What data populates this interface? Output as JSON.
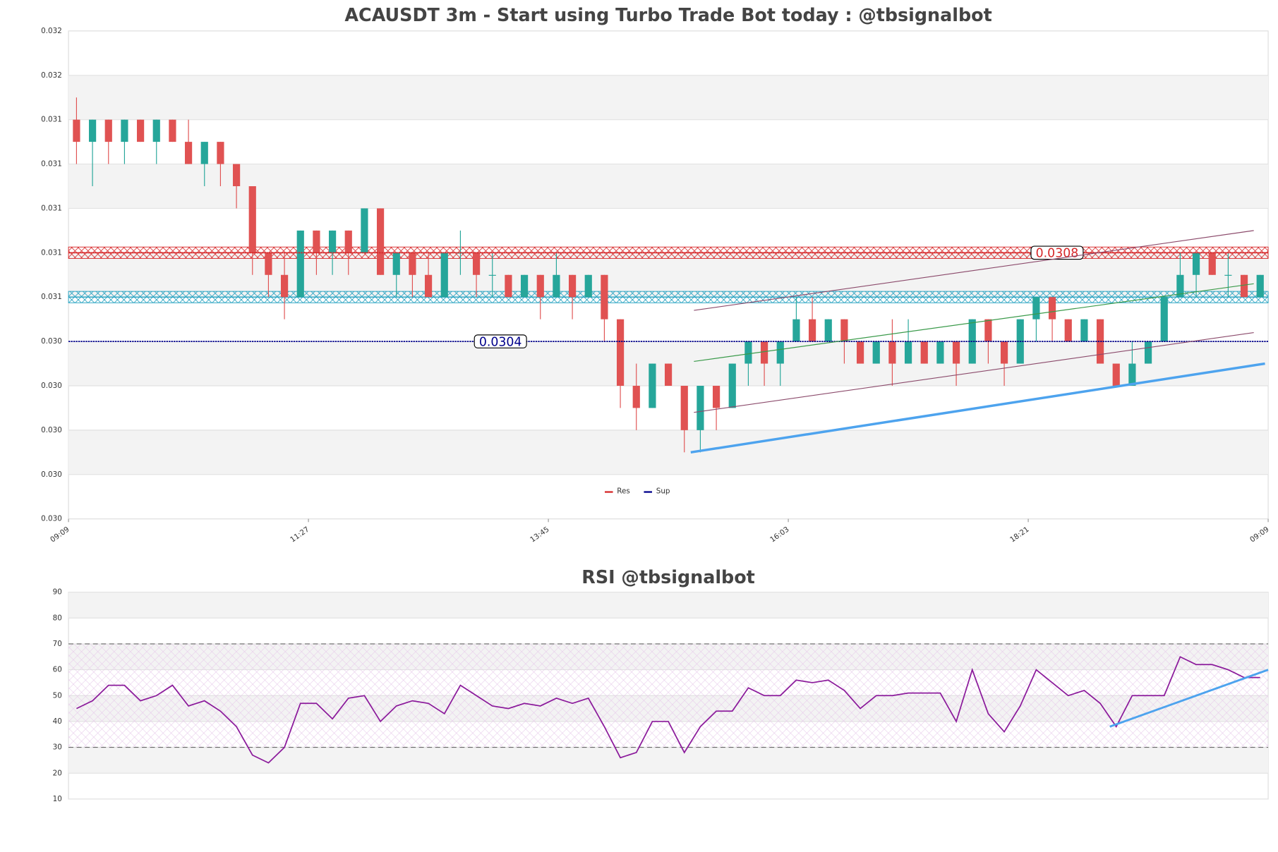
{
  "chart_data": [
    {
      "type": "candlestick",
      "title": "ACAUSDT 3m - Start using Turbo Trade Bot today : @tbsignalbot",
      "x": [
        0,
        1,
        2,
        3,
        4,
        5,
        6,
        7,
        8,
        9,
        10,
        11,
        12,
        13,
        14,
        15,
        16,
        17,
        18,
        19,
        20,
        21,
        22,
        23,
        24,
        25,
        26,
        27,
        28,
        29,
        30,
        31,
        32,
        33,
        34,
        35,
        36,
        37,
        38,
        39,
        40,
        41,
        42,
        43,
        44,
        45,
        46,
        47,
        48,
        49,
        50,
        51,
        52,
        53,
        54,
        55,
        56,
        57,
        58,
        59,
        60,
        61,
        62,
        63,
        64,
        65,
        66,
        67,
        68,
        69,
        70,
        71,
        72,
        73,
        74
      ],
      "open": [
        0.0314,
        0.0313,
        0.0314,
        0.0313,
        0.0314,
        0.0313,
        0.0314,
        0.0313,
        0.0312,
        0.0313,
        0.0312,
        0.0311,
        0.0308,
        0.0307,
        0.0306,
        0.0309,
        0.0308,
        0.0309,
        0.0308,
        0.031,
        0.0307,
        0.0308,
        0.0307,
        0.0306,
        0.0308,
        0.0308,
        0.0307,
        0.0307,
        0.0306,
        0.0307,
        0.0306,
        0.0307,
        0.0306,
        0.0307,
        0.0305,
        0.0302,
        0.0301,
        0.0303,
        0.0302,
        0.03,
        0.0302,
        0.0301,
        0.0303,
        0.0304,
        0.0303,
        0.0304,
        0.0305,
        0.0304,
        0.0305,
        0.0304,
        0.0303,
        0.0304,
        0.0303,
        0.0304,
        0.0303,
        0.0304,
        0.0303,
        0.0305,
        0.0304,
        0.0303,
        0.0305,
        0.0306,
        0.0305,
        0.0304,
        0.0305,
        0.0303,
        0.0302,
        0.0303,
        0.0304,
        0.0306,
        0.0307,
        0.0308,
        0.0307,
        0.0307,
        0.0306
      ],
      "high": [
        0.0315,
        0.0314,
        0.0314,
        0.0314,
        0.0314,
        0.0314,
        0.0314,
        0.0314,
        0.0313,
        0.0313,
        0.0312,
        0.0311,
        0.0308,
        0.0308,
        0.0309,
        0.0309,
        0.0309,
        0.0309,
        0.031,
        0.031,
        0.0308,
        0.0308,
        0.0308,
        0.0308,
        0.0309,
        0.0308,
        0.0308,
        0.0307,
        0.0307,
        0.0307,
        0.0308,
        0.0307,
        0.0307,
        0.0307,
        0.0305,
        0.0303,
        0.0303,
        0.0303,
        0.0302,
        0.0302,
        0.0302,
        0.0303,
        0.0304,
        0.0304,
        0.0304,
        0.0306,
        0.0306,
        0.0305,
        0.0305,
        0.0304,
        0.0304,
        0.0305,
        0.0305,
        0.0304,
        0.0304,
        0.0304,
        0.0305,
        0.0305,
        0.0304,
        0.0305,
        0.0306,
        0.0306,
        0.0305,
        0.0305,
        0.0305,
        0.0303,
        0.0304,
        0.0304,
        0.0306,
        0.0308,
        0.0308,
        0.0308,
        0.0308,
        0.0307,
        0.0307
      ],
      "low": [
        0.0312,
        0.0311,
        0.0312,
        0.0312,
        0.0313,
        0.0312,
        0.0313,
        0.0312,
        0.0311,
        0.0311,
        0.031,
        0.0307,
        0.0306,
        0.0305,
        0.0306,
        0.0307,
        0.0307,
        0.0307,
        0.0308,
        0.0307,
        0.0306,
        0.0306,
        0.0306,
        0.0306,
        0.0307,
        0.0306,
        0.0306,
        0.0306,
        0.0306,
        0.0305,
        0.0306,
        0.0305,
        0.0306,
        0.0304,
        0.0301,
        0.03,
        0.0301,
        0.0302,
        0.0299,
        0.0299,
        0.03,
        0.0301,
        0.0302,
        0.0302,
        0.0302,
        0.0304,
        0.0304,
        0.0304,
        0.0303,
        0.0303,
        0.0303,
        0.0302,
        0.0303,
        0.0303,
        0.0303,
        0.0302,
        0.0303,
        0.0303,
        0.0302,
        0.0303,
        0.0304,
        0.0304,
        0.0304,
        0.0304,
        0.0303,
        0.0302,
        0.0302,
        0.0303,
        0.0304,
        0.0306,
        0.0306,
        0.0307,
        0.0306,
        0.0306,
        0.0306
      ],
      "close": [
        0.0313,
        0.0314,
        0.0313,
        0.0314,
        0.0313,
        0.0314,
        0.0313,
        0.0312,
        0.0313,
        0.0312,
        0.0311,
        0.0308,
        0.0307,
        0.0306,
        0.0309,
        0.0308,
        0.0309,
        0.0308,
        0.031,
        0.0307,
        0.0308,
        0.0307,
        0.0306,
        0.0308,
        0.0308,
        0.0307,
        0.0307,
        0.0306,
        0.0307,
        0.0306,
        0.0307,
        0.0306,
        0.0307,
        0.0305,
        0.0302,
        0.0301,
        0.0303,
        0.0302,
        0.03,
        0.0302,
        0.0301,
        0.0303,
        0.0304,
        0.0303,
        0.0304,
        0.0305,
        0.0304,
        0.0305,
        0.0304,
        0.0303,
        0.0304,
        0.0303,
        0.0304,
        0.0303,
        0.0304,
        0.0303,
        0.0305,
        0.0304,
        0.0303,
        0.0305,
        0.0306,
        0.0305,
        0.0304,
        0.0305,
        0.0303,
        0.0302,
        0.0303,
        0.0304,
        0.0306,
        0.0307,
        0.0308,
        0.0307,
        0.0307,
        0.0306,
        0.0307
      ],
      "up_color": "#26a69a",
      "down_color": "#e05252",
      "xlim": [
        -0.5,
        74.5
      ],
      "xticks": [
        {
          "value": -0.5,
          "label": "09:09"
        },
        {
          "value": 14.5,
          "label": "11:27"
        },
        {
          "value": 29.5,
          "label": "13:45"
        },
        {
          "value": 44.5,
          "label": "16:03"
        },
        {
          "value": 59.5,
          "label": "18:21"
        },
        {
          "value": 74.5,
          "label": "09:09"
        }
      ],
      "ylim": [
        0.0296,
        0.0318
      ],
      "yticks": [
        {
          "value": 0.0296,
          "label": "0.030"
        },
        {
          "value": 0.0298,
          "label": "0.030"
        },
        {
          "value": 0.03,
          "label": "0.030"
        },
        {
          "value": 0.0302,
          "label": "0.030"
        },
        {
          "value": 0.0304,
          "label": "0.030"
        },
        {
          "value": 0.0306,
          "label": "0.031"
        },
        {
          "value": 0.0308,
          "label": "0.031"
        },
        {
          "value": 0.031,
          "label": "0.031"
        },
        {
          "value": 0.0312,
          "label": "0.031"
        },
        {
          "value": 0.0314,
          "label": "0.031"
        },
        {
          "value": 0.0316,
          "label": "0.032"
        },
        {
          "value": 0.0318,
          "label": "0.032"
        }
      ],
      "zones": [
        {
          "value": 0.0308,
          "color": "#d62728"
        },
        {
          "value": 0.0306,
          "color": "#1f9fbf"
        }
      ],
      "levels": [
        {
          "name": "Res",
          "value": 0.0308,
          "color": "#d62728"
        },
        {
          "name": "Sup",
          "value": 0.0304,
          "color": "#00008b"
        }
      ],
      "trendlines": [
        {
          "x": [
            38.4,
            74.3
          ],
          "y": [
            0.0299,
            0.0303
          ],
          "color": "#4da3ee",
          "width": 3
        },
        {
          "x": [
            38.6,
            73.6
          ],
          "y": [
            0.03054,
            0.0309
          ],
          "color": "#8b4a6b",
          "width": 1
        },
        {
          "x": [
            38.6,
            73.6
          ],
          "y": [
            0.03008,
            0.03044
          ],
          "color": "#8b4a6b",
          "width": 1
        },
        {
          "x": [
            38.6,
            73.6
          ],
          "y": [
            0.03031,
            0.03066
          ],
          "color": "#3a9a4a",
          "width": 1
        }
      ]
    },
    {
      "type": "line",
      "title": "RSI @tbsignalbot",
      "color": "#8b1a9b",
      "x": [
        0,
        1,
        2,
        3,
        4,
        5,
        6,
        7,
        8,
        9,
        10,
        11,
        12,
        13,
        14,
        15,
        16,
        17,
        18,
        19,
        20,
        21,
        22,
        23,
        24,
        25,
        26,
        27,
        28,
        29,
        30,
        31,
        32,
        33,
        34,
        35,
        36,
        37,
        38,
        39,
        40,
        41,
        42,
        43,
        44,
        45,
        46,
        47,
        48,
        49,
        50,
        51,
        52,
        53,
        54,
        55,
        56,
        57,
        58,
        59,
        60,
        61,
        62,
        63,
        64,
        65,
        66,
        67,
        68,
        69,
        70,
        71,
        72,
        73,
        74
      ],
      "values": [
        45,
        48,
        54,
        54,
        48,
        50,
        54,
        46,
        48,
        44,
        38,
        27,
        24,
        30,
        47,
        47,
        41,
        49,
        50,
        40,
        46,
        48,
        47,
        43,
        54,
        50,
        46,
        45,
        47,
        46,
        49,
        47,
        49,
        38,
        26,
        28,
        40,
        40,
        28,
        38,
        44,
        44,
        53,
        50,
        50,
        56,
        55,
        56,
        52,
        45,
        50,
        50,
        51,
        51,
        51,
        40,
        60,
        43,
        36,
        46,
        60,
        55,
        50,
        52,
        47,
        38,
        50,
        50,
        50,
        65,
        62,
        62,
        60,
        57,
        57
      ],
      "xlim": [
        -0.5,
        74.5
      ],
      "ylim": [
        10,
        90
      ],
      "yticks": [
        10,
        20,
        30,
        40,
        50,
        60,
        70,
        80,
        90
      ],
      "bounds": [
        30,
        70
      ],
      "trendlines": [
        {
          "x": [
            64.6,
            74.5
          ],
          "y": [
            38,
            60
          ],
          "color": "#4da3ee",
          "width": 2.5
        }
      ]
    }
  ]
}
